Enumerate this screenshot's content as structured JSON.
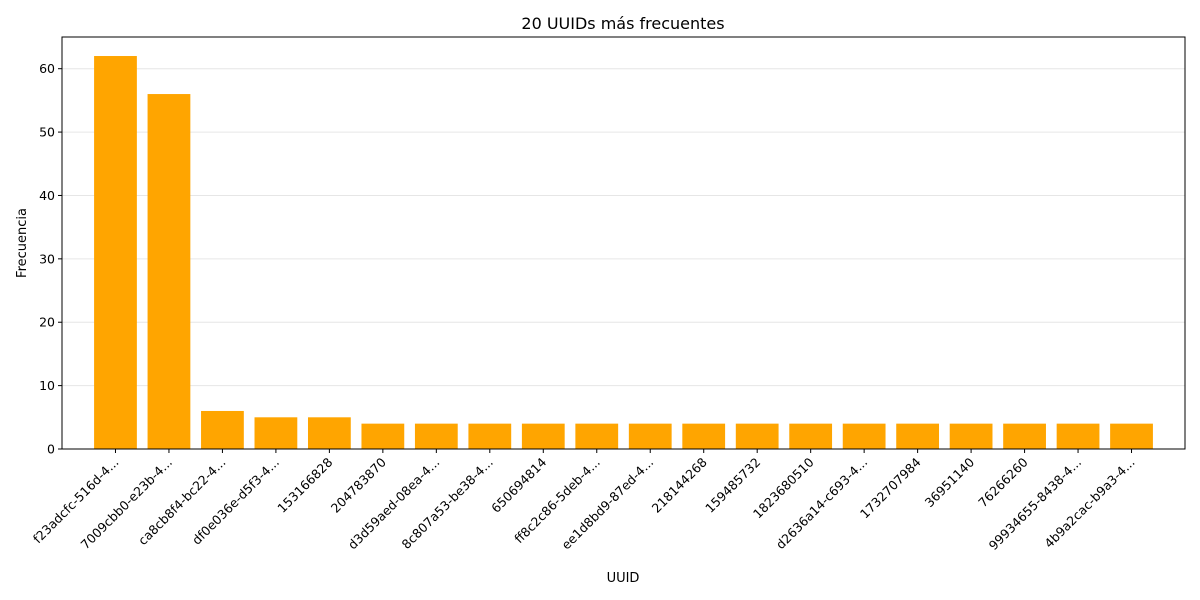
{
  "chart_data": {
    "type": "bar",
    "title": "20 UUIDs más frecuentes",
    "xlabel": "UUID",
    "ylabel": "Frecuencia",
    "categories": [
      "f23adcfc-516d-4...",
      "7009cbb0-e23b-4...",
      "ca8cb8f4-bc22-4...",
      "df0e036e-d5f3-4...",
      "153166828",
      "204783870",
      "d3d59aed-08ea-4...",
      "8c807a53-be38-4...",
      "650694814",
      "ff8c2c86-5deb-4...",
      "ee1d8bd9-87ed-4...",
      "218144268",
      "159485732",
      "1823680510",
      "d2636a14-c693-4...",
      "1732707984",
      "36951140",
      "76266260",
      "99934655-8438-4...",
      "4b9a2cac-b9a3-4..."
    ],
    "values": [
      62,
      56,
      6,
      5,
      5,
      4,
      4,
      4,
      4,
      4,
      4,
      4,
      4,
      4,
      4,
      4,
      4,
      4,
      4,
      4
    ],
    "ylim": [
      0,
      65
    ],
    "yticks": [
      0,
      10,
      20,
      30,
      40,
      50,
      60
    ],
    "grid": "y-only",
    "bar_color": "#ffa500"
  }
}
